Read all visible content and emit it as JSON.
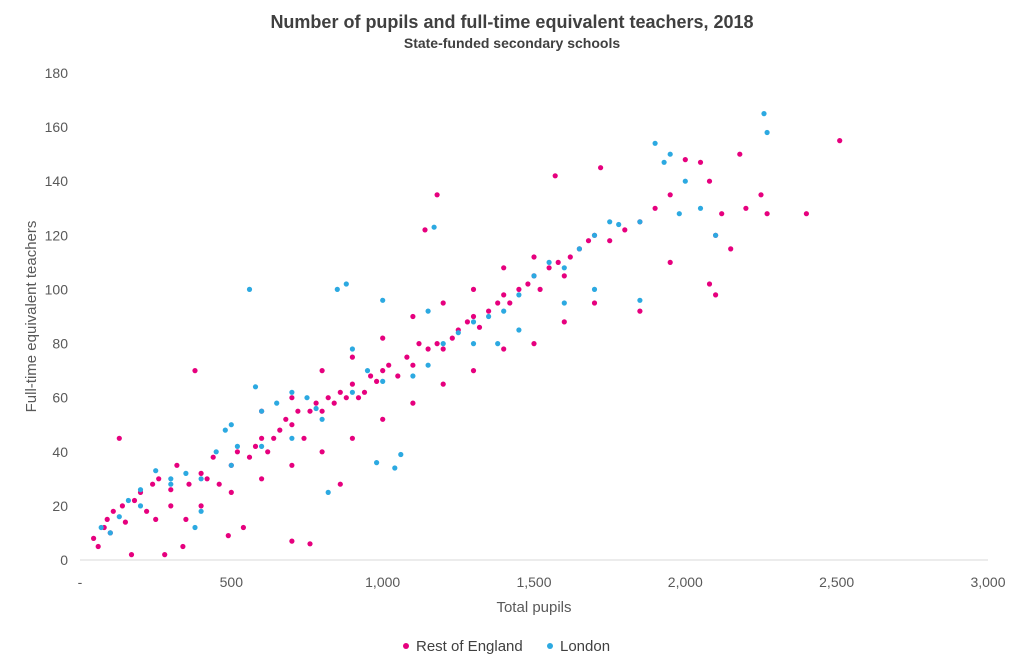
{
  "chart_data": {
    "type": "scatter",
    "title": "Number of pupils and full-time equivalent teachers, 2018",
    "subtitle": "State-funded secondary schools",
    "xlabel": "Total pupils",
    "ylabel": "Full-time equivalent teachers",
    "xlim": [
      0,
      3000
    ],
    "ylim": [
      0,
      180
    ],
    "x_ticks": [
      0,
      500,
      1000,
      1500,
      2000,
      2500,
      3000
    ],
    "x_tick_labels": [
      "-",
      "500",
      "1,000",
      "1,500",
      "2,000",
      "2,500",
      "3,000"
    ],
    "y_ticks": [
      0,
      20,
      40,
      60,
      80,
      100,
      120,
      140,
      160,
      180
    ],
    "y_tick_labels": [
      "0",
      "20",
      "40",
      "60",
      "80",
      "100",
      "120",
      "140",
      "160",
      "180"
    ],
    "grid": false,
    "legend_position": "bottom",
    "series": [
      {
        "name": "Rest of England",
        "color": "#e6007e",
        "points": [
          [
            45,
            8
          ],
          [
            60,
            5
          ],
          [
            80,
            12
          ],
          [
            90,
            15
          ],
          [
            100,
            10
          ],
          [
            110,
            18
          ],
          [
            130,
            45
          ],
          [
            140,
            20
          ],
          [
            150,
            14
          ],
          [
            170,
            2
          ],
          [
            180,
            22
          ],
          [
            200,
            25
          ],
          [
            220,
            18
          ],
          [
            240,
            28
          ],
          [
            260,
            30
          ],
          [
            280,
            2
          ],
          [
            300,
            26
          ],
          [
            320,
            35
          ],
          [
            340,
            5
          ],
          [
            360,
            28
          ],
          [
            380,
            70
          ],
          [
            400,
            32
          ],
          [
            420,
            30
          ],
          [
            440,
            38
          ],
          [
            460,
            28
          ],
          [
            490,
            9
          ],
          [
            500,
            35
          ],
          [
            520,
            40
          ],
          [
            540,
            12
          ],
          [
            560,
            38
          ],
          [
            580,
            42
          ],
          [
            600,
            45
          ],
          [
            620,
            40
          ],
          [
            640,
            45
          ],
          [
            660,
            48
          ],
          [
            680,
            52
          ],
          [
            700,
            7
          ],
          [
            700,
            50
          ],
          [
            720,
            55
          ],
          [
            740,
            45
          ],
          [
            760,
            6
          ],
          [
            760,
            55
          ],
          [
            780,
            58
          ],
          [
            800,
            55
          ],
          [
            820,
            60
          ],
          [
            840,
            58
          ],
          [
            860,
            28
          ],
          [
            860,
            62
          ],
          [
            880,
            60
          ],
          [
            900,
            65
          ],
          [
            920,
            60
          ],
          [
            940,
            62
          ],
          [
            960,
            68
          ],
          [
            980,
            66
          ],
          [
            1000,
            70
          ],
          [
            1020,
            72
          ],
          [
            1050,
            68
          ],
          [
            1080,
            75
          ],
          [
            1100,
            72
          ],
          [
            1120,
            80
          ],
          [
            1140,
            122
          ],
          [
            1150,
            78
          ],
          [
            1180,
            135
          ],
          [
            1180,
            80
          ],
          [
            1200,
            78
          ],
          [
            1230,
            82
          ],
          [
            1250,
            85
          ],
          [
            1280,
            88
          ],
          [
            1300,
            90
          ],
          [
            1320,
            86
          ],
          [
            1350,
            92
          ],
          [
            1380,
            95
          ],
          [
            1400,
            98
          ],
          [
            1420,
            95
          ],
          [
            1450,
            100
          ],
          [
            1480,
            102
          ],
          [
            1500,
            105
          ],
          [
            1520,
            100
          ],
          [
            1550,
            108
          ],
          [
            1570,
            142
          ],
          [
            1580,
            110
          ],
          [
            1600,
            105
          ],
          [
            1620,
            112
          ],
          [
            1650,
            115
          ],
          [
            1680,
            118
          ],
          [
            1700,
            120
          ],
          [
            1720,
            145
          ],
          [
            1750,
            118
          ],
          [
            1800,
            122
          ],
          [
            1850,
            125
          ],
          [
            1900,
            130
          ],
          [
            1950,
            135
          ],
          [
            2000,
            148
          ],
          [
            2050,
            147
          ],
          [
            2080,
            140
          ],
          [
            2100,
            120
          ],
          [
            2120,
            128
          ],
          [
            2150,
            115
          ],
          [
            2180,
            150
          ],
          [
            2200,
            130
          ],
          [
            2250,
            135
          ],
          [
            2270,
            128
          ],
          [
            2400,
            128
          ],
          [
            2510,
            155
          ],
          [
            2100,
            98
          ],
          [
            2080,
            102
          ],
          [
            1950,
            110
          ],
          [
            1850,
            92
          ],
          [
            1700,
            95
          ],
          [
            1600,
            88
          ],
          [
            1500,
            80
          ],
          [
            1400,
            78
          ],
          [
            1300,
            70
          ],
          [
            1200,
            65
          ],
          [
            1100,
            58
          ],
          [
            1000,
            52
          ],
          [
            900,
            45
          ],
          [
            800,
            40
          ],
          [
            700,
            35
          ],
          [
            600,
            30
          ],
          [
            500,
            25
          ],
          [
            400,
            20
          ],
          [
            350,
            15
          ],
          [
            300,
            20
          ],
          [
            250,
            15
          ],
          [
            600,
            55
          ],
          [
            700,
            60
          ],
          [
            800,
            70
          ],
          [
            900,
            75
          ],
          [
            1000,
            82
          ],
          [
            1100,
            90
          ],
          [
            1200,
            95
          ],
          [
            1300,
            100
          ],
          [
            1400,
            108
          ],
          [
            1500,
            112
          ]
        ]
      },
      {
        "name": "London",
        "color": "#2ca9e1",
        "points": [
          [
            70,
            12
          ],
          [
            100,
            10
          ],
          [
            130,
            16
          ],
          [
            160,
            22
          ],
          [
            200,
            26
          ],
          [
            250,
            33
          ],
          [
            300,
            30
          ],
          [
            350,
            32
          ],
          [
            380,
            12
          ],
          [
            400,
            18
          ],
          [
            450,
            40
          ],
          [
            480,
            48
          ],
          [
            500,
            50
          ],
          [
            520,
            42
          ],
          [
            560,
            100
          ],
          [
            580,
            64
          ],
          [
            600,
            55
          ],
          [
            650,
            58
          ],
          [
            700,
            62
          ],
          [
            750,
            60
          ],
          [
            780,
            56
          ],
          [
            820,
            25
          ],
          [
            850,
            100
          ],
          [
            880,
            102
          ],
          [
            900,
            78
          ],
          [
            950,
            70
          ],
          [
            980,
            36
          ],
          [
            1000,
            96
          ],
          [
            1040,
            34
          ],
          [
            1060,
            39
          ],
          [
            1100,
            68
          ],
          [
            1150,
            92
          ],
          [
            1170,
            123
          ],
          [
            1200,
            80
          ],
          [
            1250,
            84
          ],
          [
            1300,
            88
          ],
          [
            1350,
            90
          ],
          [
            1380,
            80
          ],
          [
            1400,
            92
          ],
          [
            1450,
            98
          ],
          [
            1500,
            105
          ],
          [
            1550,
            110
          ],
          [
            1600,
            108
          ],
          [
            1650,
            115
          ],
          [
            1700,
            120
          ],
          [
            1750,
            125
          ],
          [
            1780,
            124
          ],
          [
            1850,
            125
          ],
          [
            1900,
            154
          ],
          [
            1930,
            147
          ],
          [
            1950,
            150
          ],
          [
            1980,
            128
          ],
          [
            2000,
            140
          ],
          [
            2050,
            130
          ],
          [
            2100,
            120
          ],
          [
            2260,
            165
          ],
          [
            2270,
            158
          ],
          [
            1850,
            96
          ],
          [
            1700,
            100
          ],
          [
            1600,
            95
          ],
          [
            1450,
            85
          ],
          [
            1300,
            80
          ],
          [
            1150,
            72
          ],
          [
            1000,
            66
          ],
          [
            900,
            62
          ],
          [
            800,
            52
          ],
          [
            700,
            45
          ],
          [
            600,
            42
          ],
          [
            500,
            35
          ],
          [
            400,
            30
          ],
          [
            300,
            28
          ],
          [
            200,
            20
          ]
        ]
      }
    ]
  }
}
